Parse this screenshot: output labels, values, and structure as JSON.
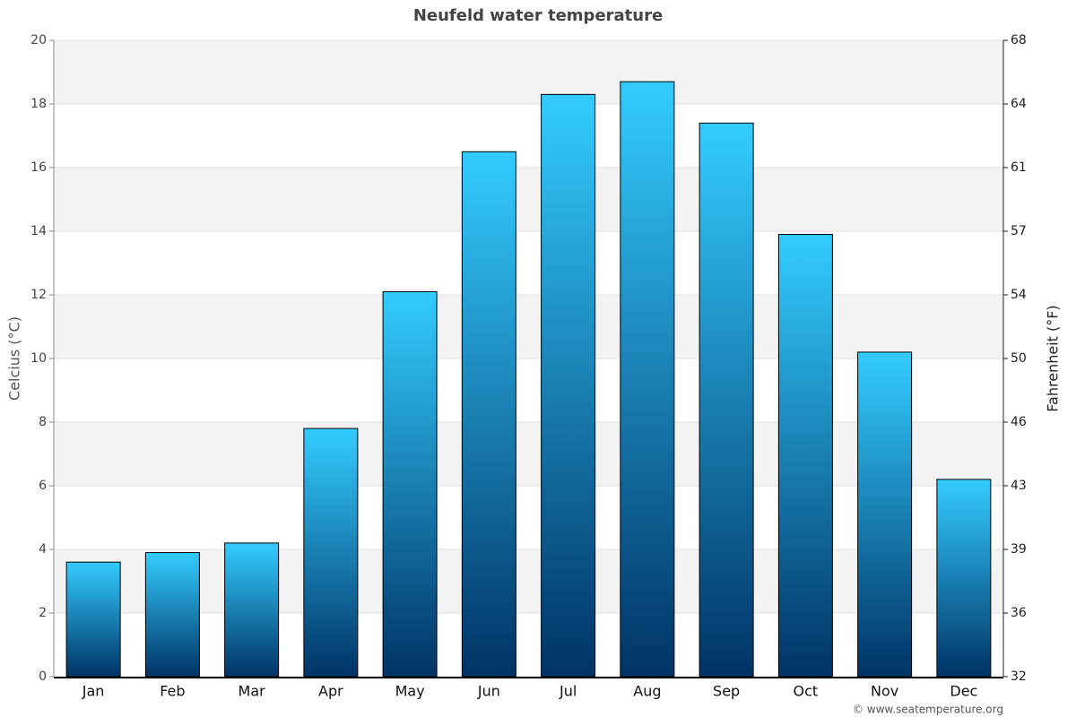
{
  "chart_data": {
    "type": "bar",
    "title": "Neufeld water temperature",
    "y_label": "Celcius (°C)",
    "y2_label": "Fahrenheit (°F)",
    "source": "© www.seatemperature.org",
    "categories": [
      "Jan",
      "Feb",
      "Mar",
      "Apr",
      "May",
      "Jun",
      "Jul",
      "Aug",
      "Sep",
      "Oct",
      "Nov",
      "Dec"
    ],
    "values": [
      3.6,
      3.9,
      4.2,
      7.8,
      12.1,
      16.5,
      18.3,
      18.7,
      17.4,
      13.9,
      10.2,
      6.2
    ],
    "color_top": "#33ccff",
    "color_bottom": "#003366",
    "ylim": [
      0,
      20
    ],
    "yticks": [
      0,
      2,
      4,
      6,
      8,
      10,
      12,
      14,
      16,
      18,
      20
    ],
    "y2lim": [
      32,
      68
    ],
    "y2ticks": [
      32,
      {
        "value": 35.6,
        "label": "36"
      },
      {
        "value": 39.2,
        "label": "39"
      },
      {
        "value": 42.8,
        "label": "43"
      },
      {
        "value": 46.4,
        "label": "46"
      },
      50,
      {
        "value": 53.6,
        "label": "54"
      },
      {
        "value": 57.2,
        "label": "57"
      },
      {
        "value": 60.8,
        "label": "61"
      },
      {
        "value": 64.4,
        "label": "64"
      },
      68
    ],
    "grid": true,
    "band_color": "#f3f3f3"
  }
}
